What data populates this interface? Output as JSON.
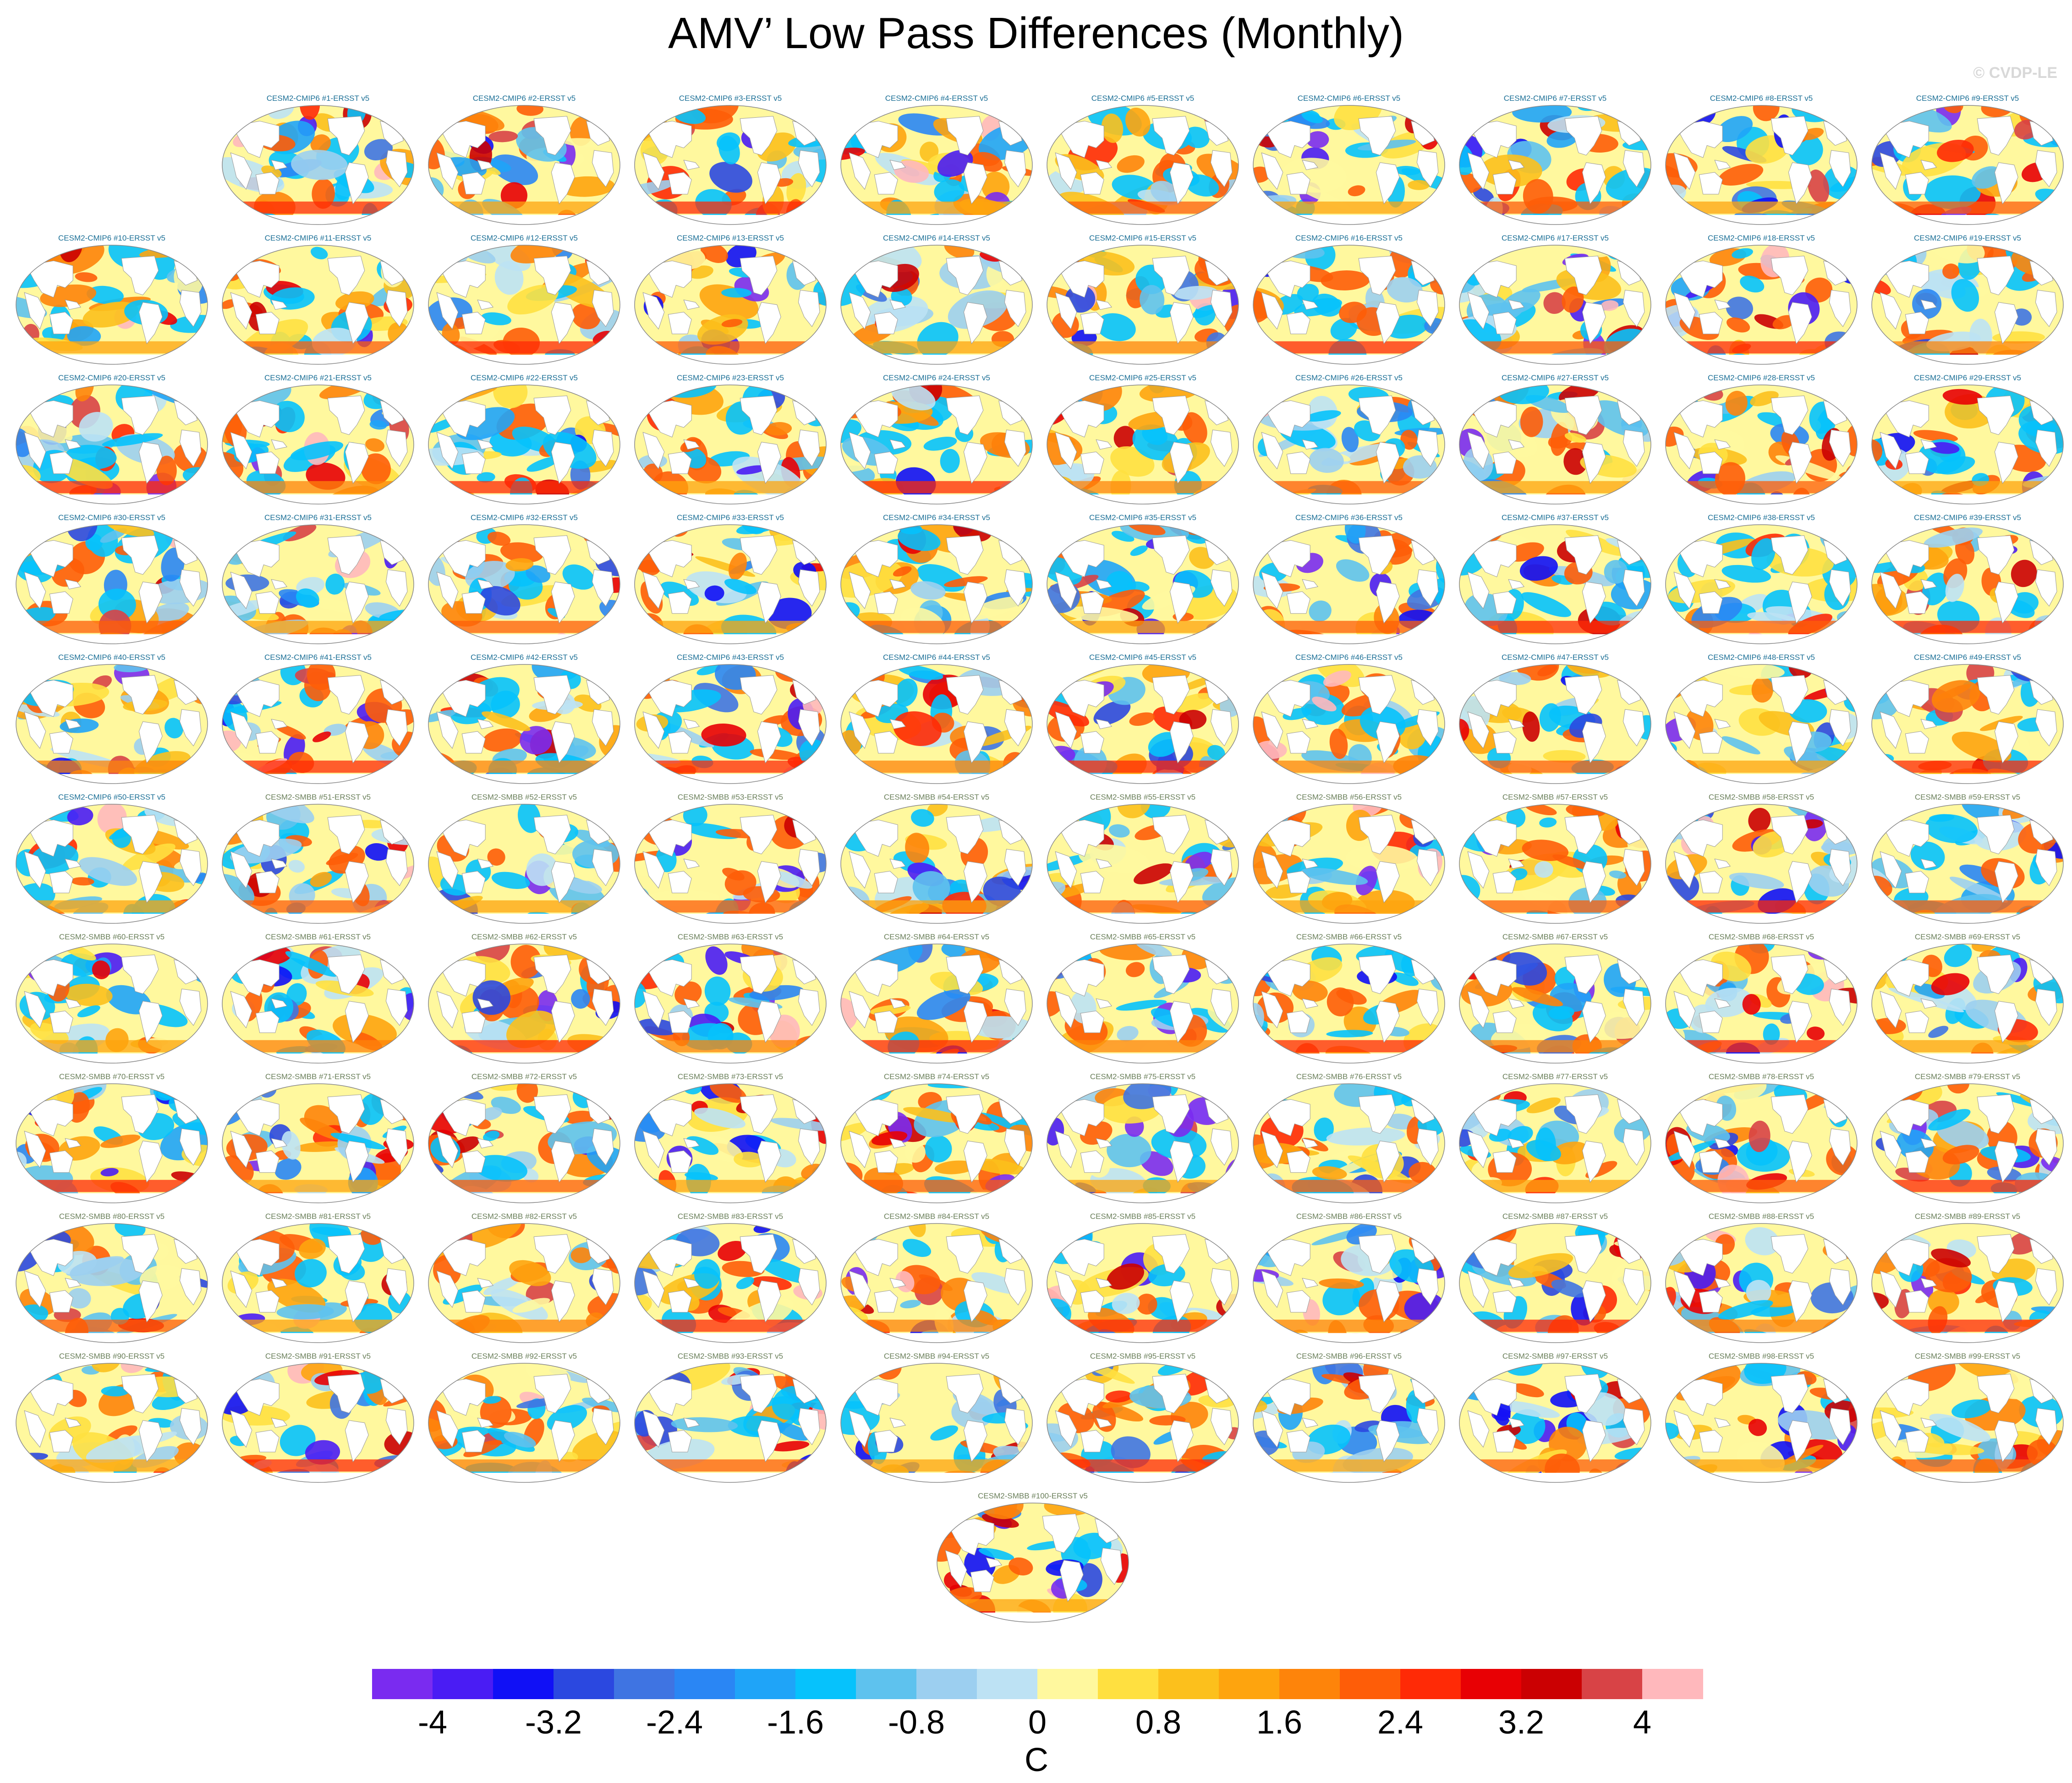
{
  "title": "AMV’ Low Pass Differences (Monthly)",
  "watermark": "© CVDP-LE",
  "chart_data": {
    "type": "heatmap",
    "title": "AMV’ Low Pass Differences (Monthly)",
    "panel_count": 100,
    "panels": [
      "CESM2-CMIP6 #1-ERSST v5",
      "CESM2-CMIP6 #2-ERSST v5",
      "CESM2-CMIP6 #3-ERSST v5",
      "CESM2-CMIP6 #4-ERSST v5",
      "CESM2-CMIP6 #5-ERSST v5",
      "CESM2-CMIP6 #6-ERSST v5",
      "CESM2-CMIP6 #7-ERSST v5",
      "CESM2-CMIP6 #8-ERSST v5",
      "CESM2-CMIP6 #9-ERSST v5",
      "CESM2-CMIP6 #10-ERSST v5",
      "CESM2-CMIP6 #11-ERSST v5",
      "CESM2-CMIP6 #12-ERSST v5",
      "CESM2-CMIP6 #13-ERSST v5",
      "CESM2-CMIP6 #14-ERSST v5",
      "CESM2-CMIP6 #15-ERSST v5",
      "CESM2-CMIP6 #16-ERSST v5",
      "CESM2-CMIP6 #17-ERSST v5",
      "CESM2-CMIP6 #18-ERSST v5",
      "CESM2-CMIP6 #19-ERSST v5",
      "CESM2-CMIP6 #20-ERSST v5",
      "CESM2-CMIP6 #21-ERSST v5",
      "CESM2-CMIP6 #22-ERSST v5",
      "CESM2-CMIP6 #23-ERSST v5",
      "CESM2-CMIP6 #24-ERSST v5",
      "CESM2-CMIP6 #25-ERSST v5",
      "CESM2-CMIP6 #26-ERSST v5",
      "CESM2-CMIP6 #27-ERSST v5",
      "CESM2-CMIP6 #28-ERSST v5",
      "CESM2-CMIP6 #29-ERSST v5",
      "CESM2-CMIP6 #30-ERSST v5",
      "CESM2-CMIP6 #31-ERSST v5",
      "CESM2-CMIP6 #32-ERSST v5",
      "CESM2-CMIP6 #33-ERSST v5",
      "CESM2-CMIP6 #34-ERSST v5",
      "CESM2-CMIP6 #35-ERSST v5",
      "CESM2-CMIP6 #36-ERSST v5",
      "CESM2-CMIP6 #37-ERSST v5",
      "CESM2-CMIP6 #38-ERSST v5",
      "CESM2-CMIP6 #39-ERSST v5",
      "CESM2-CMIP6 #40-ERSST v5",
      "CESM2-CMIP6 #41-ERSST v5",
      "CESM2-CMIP6 #42-ERSST v5",
      "CESM2-CMIP6 #43-ERSST v5",
      "CESM2-CMIP6 #44-ERSST v5",
      "CESM2-CMIP6 #45-ERSST v5",
      "CESM2-CMIP6 #46-ERSST v5",
      "CESM2-CMIP6 #47-ERSST v5",
      "CESM2-CMIP6 #48-ERSST v5",
      "CESM2-CMIP6 #49-ERSST v5",
      "CESM2-CMIP6 #50-ERSST v5",
      "CESM2-SMBB #51-ERSST v5",
      "CESM2-SMBB #52-ERSST v5",
      "CESM2-SMBB #53-ERSST v5",
      "CESM2-SMBB #54-ERSST v5",
      "CESM2-SMBB #55-ERSST v5",
      "CESM2-SMBB #56-ERSST v5",
      "CESM2-SMBB #57-ERSST v5",
      "CESM2-SMBB #58-ERSST v5",
      "CESM2-SMBB #59-ERSST v5",
      "CESM2-SMBB #60-ERSST v5",
      "CESM2-SMBB #61-ERSST v5",
      "CESM2-SMBB #62-ERSST v5",
      "CESM2-SMBB #63-ERSST v5",
      "CESM2-SMBB #64-ERSST v5",
      "CESM2-SMBB #65-ERSST v5",
      "CESM2-SMBB #66-ERSST v5",
      "CESM2-SMBB #67-ERSST v5",
      "CESM2-SMBB #68-ERSST v5",
      "CESM2-SMBB #69-ERSST v5",
      "CESM2-SMBB #70-ERSST v5",
      "CESM2-SMBB #71-ERSST v5",
      "CESM2-SMBB #72-ERSST v5",
      "CESM2-SMBB #73-ERSST v5",
      "CESM2-SMBB #74-ERSST v5",
      "CESM2-SMBB #75-ERSST v5",
      "CESM2-SMBB #76-ERSST v5",
      "CESM2-SMBB #77-ERSST v5",
      "CESM2-SMBB #78-ERSST v5",
      "CESM2-SMBB #79-ERSST v5",
      "CESM2-SMBB #80-ERSST v5",
      "CESM2-SMBB #81-ERSST v5",
      "CESM2-SMBB #82-ERSST v5",
      "CESM2-SMBB #83-ERSST v5",
      "CESM2-SMBB #84-ERSST v5",
      "CESM2-SMBB #85-ERSST v5",
      "CESM2-SMBB #86-ERSST v5",
      "CESM2-SMBB #87-ERSST v5",
      "CESM2-SMBB #88-ERSST v5",
      "CESM2-SMBB #89-ERSST v5",
      "CESM2-SMBB #90-ERSST v5",
      "CESM2-SMBB #91-ERSST v5",
      "CESM2-SMBB #92-ERSST v5",
      "CESM2-SMBB #93-ERSST v5",
      "CESM2-SMBB #94-ERSST v5",
      "CESM2-SMBB #95-ERSST v5",
      "CESM2-SMBB #96-ERSST v5",
      "CESM2-SMBB #97-ERSST v5",
      "CESM2-SMBB #98-ERSST v5",
      "CESM2-SMBB #99-ERSST v5",
      "CESM2-SMBB #100-ERSST v5"
    ],
    "colorbar": {
      "unit": "C",
      "levels": [
        -4.4,
        -4.0,
        -3.6,
        -3.2,
        -2.8,
        -2.4,
        -2.0,
        -1.6,
        -1.2,
        -0.8,
        -0.4,
        0,
        0.4,
        0.8,
        1.2,
        1.6,
        2.0,
        2.4,
        2.8,
        3.2,
        3.6,
        4.0,
        4.4
      ],
      "tick_labels": [
        "-4",
        "-3.2",
        "-2.4",
        "-1.6",
        "-0.8",
        "0",
        "0.8",
        "1.6",
        "2.4",
        "3.2",
        "4"
      ],
      "tick_values": [
        -4,
        -3.2,
        -2.4,
        -1.6,
        -0.8,
        0,
        0.8,
        1.6,
        2.4,
        3.2,
        4
      ],
      "colors": [
        "#7a2bf0",
        "#4a1cf4",
        "#1010f6",
        "#2b48e0",
        "#3f74e2",
        "#2a86f4",
        "#1fa4f8",
        "#06c2fc",
        "#5ec2ee",
        "#9ccff0",
        "#bde2f4",
        "#fff89e",
        "#ffe040",
        "#fcc01c",
        "#fea40e",
        "#fe840a",
        "#fe5d08",
        "#ff2a06",
        "#e80004",
        "#cb0002",
        "#d84346",
        "#ffb8bc"
      ]
    }
  },
  "colors": {
    "land": "#ffffff",
    "coast": "#9a9a9a",
    "cmip_label": "#1b6f96",
    "smbb_label": "#6a7f5a",
    "watermark": "#d8d8d8"
  }
}
